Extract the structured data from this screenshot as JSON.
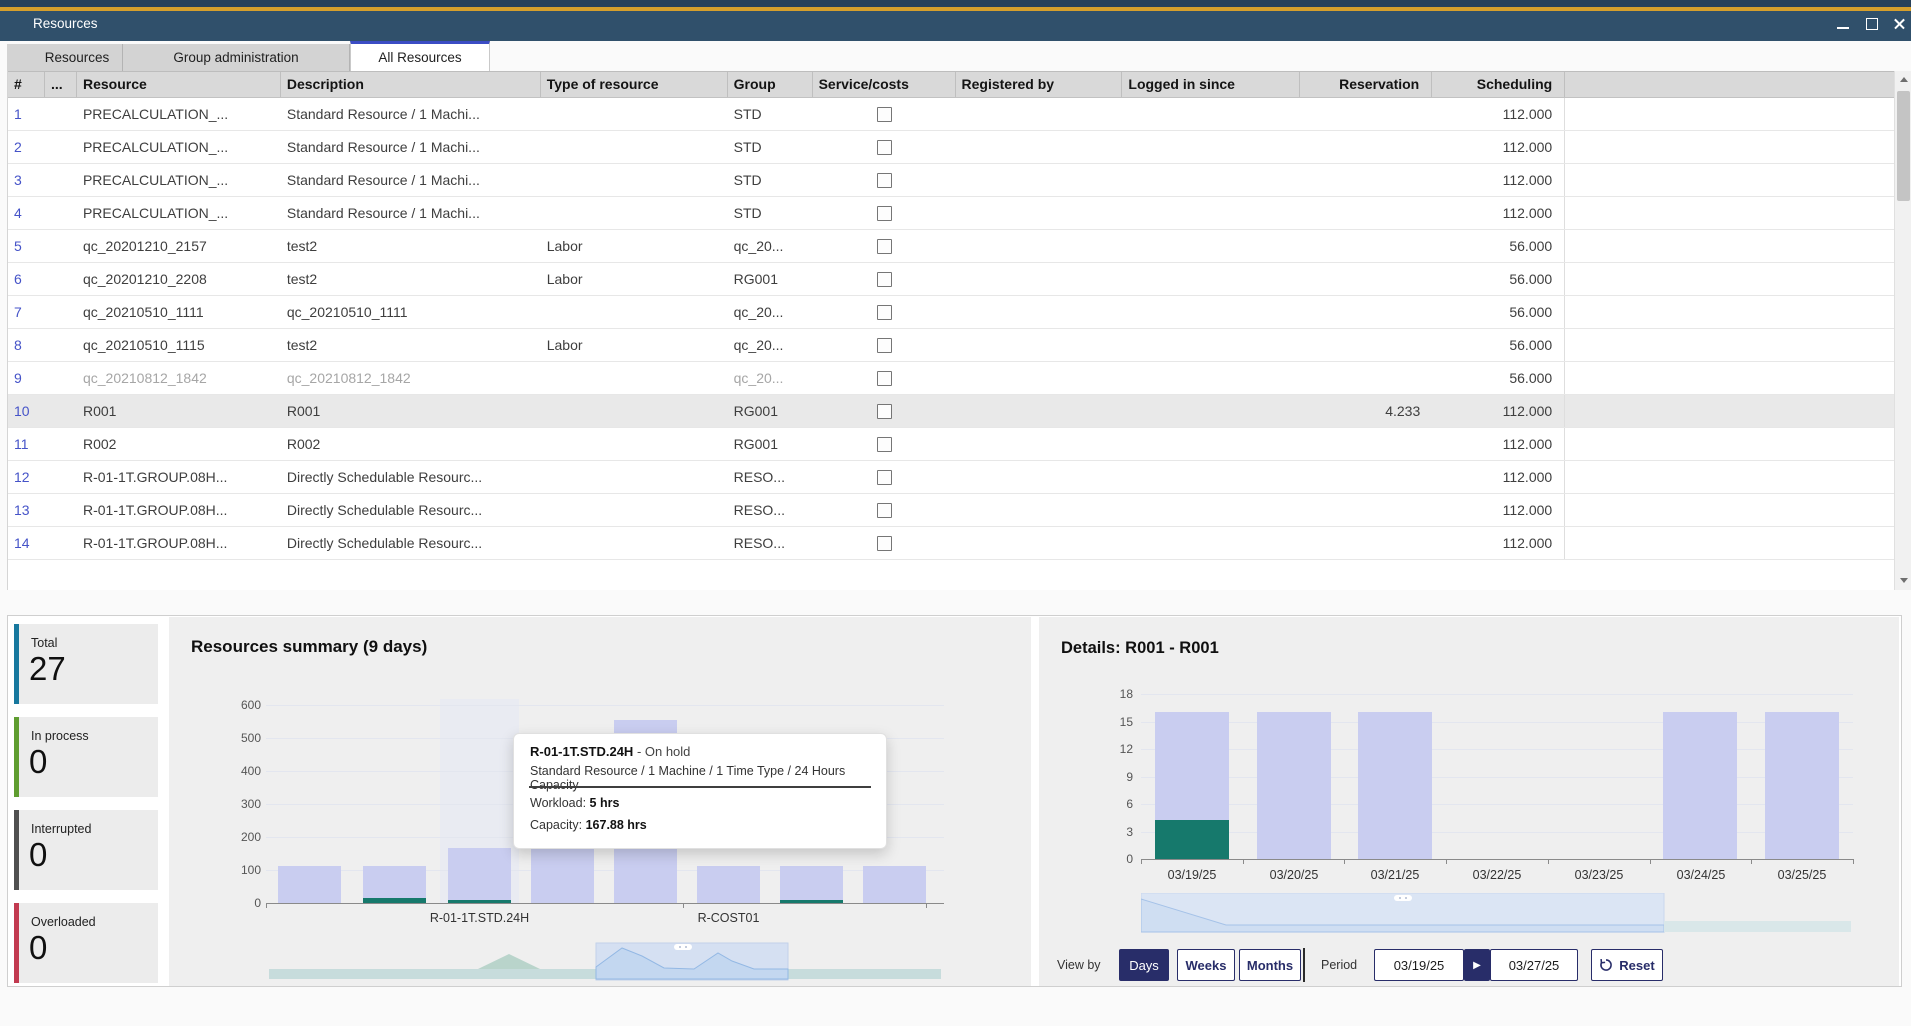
{
  "window": {
    "title": "Resources"
  },
  "tabs": [
    {
      "label": "Resources",
      "active": false
    },
    {
      "label": "Group administration",
      "active": false
    },
    {
      "label": "All Resources",
      "active": true
    }
  ],
  "table": {
    "columns": [
      "#",
      "...",
      "Resource",
      "Description",
      "Type of resource",
      "Group",
      "Service/costs",
      "Registered by",
      "Logged in since",
      "Reservation",
      "Scheduling"
    ],
    "rows": [
      {
        "n": "1",
        "resource": "PRECALCULATION_...",
        "description": "Standard Resource / 1 Machi...",
        "type": "",
        "group": "STD",
        "service_checked": false,
        "registered_by": "",
        "logged_in_since": "",
        "reservation": "",
        "scheduling": "112.000",
        "muted": false,
        "selected": false
      },
      {
        "n": "2",
        "resource": "PRECALCULATION_...",
        "description": "Standard Resource / 1 Machi...",
        "type": "",
        "group": "STD",
        "service_checked": false,
        "registered_by": "",
        "logged_in_since": "",
        "reservation": "",
        "scheduling": "112.000",
        "muted": false,
        "selected": false
      },
      {
        "n": "3",
        "resource": "PRECALCULATION_...",
        "description": "Standard Resource / 1 Machi...",
        "type": "",
        "group": "STD",
        "service_checked": false,
        "registered_by": "",
        "logged_in_since": "",
        "reservation": "",
        "scheduling": "112.000",
        "muted": false,
        "selected": false
      },
      {
        "n": "4",
        "resource": "PRECALCULATION_...",
        "description": "Standard Resource / 1 Machi...",
        "type": "",
        "group": "STD",
        "service_checked": false,
        "registered_by": "",
        "logged_in_since": "",
        "reservation": "",
        "scheduling": "112.000",
        "muted": false,
        "selected": false
      },
      {
        "n": "5",
        "resource": "qc_20201210_2157",
        "description": "test2",
        "type": "Labor",
        "group": "qc_20...",
        "service_checked": false,
        "registered_by": "",
        "logged_in_since": "",
        "reservation": "",
        "scheduling": "56.000",
        "muted": false,
        "selected": false
      },
      {
        "n": "6",
        "resource": "qc_20201210_2208",
        "description": "test2",
        "type": "Labor",
        "group": "RG001",
        "service_checked": false,
        "registered_by": "",
        "logged_in_since": "",
        "reservation": "",
        "scheduling": "56.000",
        "muted": false,
        "selected": false
      },
      {
        "n": "7",
        "resource": "qc_20210510_1111",
        "description": "qc_20210510_1111",
        "type": "",
        "group": "qc_20...",
        "service_checked": false,
        "registered_by": "",
        "logged_in_since": "",
        "reservation": "",
        "scheduling": "56.000",
        "muted": false,
        "selected": false
      },
      {
        "n": "8",
        "resource": "qc_20210510_1115",
        "description": "test2",
        "type": "Labor",
        "group": "qc_20...",
        "service_checked": false,
        "registered_by": "",
        "logged_in_since": "",
        "reservation": "",
        "scheduling": "56.000",
        "muted": false,
        "selected": false
      },
      {
        "n": "9",
        "resource": "qc_20210812_1842",
        "description": "qc_20210812_1842",
        "type": "",
        "group": "qc_20...",
        "service_checked": false,
        "registered_by": "",
        "logged_in_since": "",
        "reservation": "",
        "scheduling": "56.000",
        "muted": true,
        "selected": false
      },
      {
        "n": "10",
        "resource": "R001",
        "description": "R001",
        "type": "",
        "group": "RG001",
        "service_checked": false,
        "registered_by": "",
        "logged_in_since": "",
        "reservation": "4.233",
        "scheduling": "112.000",
        "muted": false,
        "selected": true
      },
      {
        "n": "11",
        "resource": "R002",
        "description": "R002",
        "type": "",
        "group": "RG001",
        "service_checked": false,
        "registered_by": "",
        "logged_in_since": "",
        "reservation": "",
        "scheduling": "112.000",
        "muted": false,
        "selected": false
      },
      {
        "n": "12",
        "resource": "R-01-1T.GROUP.08H...",
        "description": "Directly Schedulable Resourc...",
        "type": "",
        "group": "RESO...",
        "service_checked": false,
        "registered_by": "",
        "logged_in_since": "",
        "reservation": "",
        "scheduling": "112.000",
        "muted": false,
        "selected": false
      },
      {
        "n": "13",
        "resource": "R-01-1T.GROUP.08H...",
        "description": "Directly Schedulable Resourc...",
        "type": "",
        "group": "RESO...",
        "service_checked": false,
        "registered_by": "",
        "logged_in_since": "",
        "reservation": "",
        "scheduling": "112.000",
        "muted": false,
        "selected": false
      },
      {
        "n": "14",
        "resource": "R-01-1T.GROUP.08H...",
        "description": "Directly Schedulable Resourc...",
        "type": "",
        "group": "RESO...",
        "service_checked": false,
        "registered_by": "",
        "logged_in_since": "",
        "reservation": "",
        "scheduling": "112.000",
        "muted": false,
        "selected": false
      }
    ]
  },
  "summary": {
    "cards": [
      {
        "label": "Total",
        "value": "27",
        "color": "#17789e"
      },
      {
        "label": "In process",
        "value": "0",
        "color": "#5f9d30"
      },
      {
        "label": "Interrupted",
        "value": "0",
        "color": "#4f4f4f"
      },
      {
        "label": "Overloaded",
        "value": "0",
        "color": "#c23a50"
      }
    ]
  },
  "resources_summary": {
    "title": "Resources summary (9 days)"
  },
  "tooltip": {
    "title": "R-01-1T.STD.24H",
    "status": "- On hold",
    "subtitle": "Standard Resource / 1 Machine / 1 Time Type / 24 Hours Capacity",
    "workload_label": "Workload:",
    "workload_value": "5 hrs",
    "capacity_label": "Capacity:",
    "capacity_value": "167.88 hrs"
  },
  "details": {
    "title": "Details: R001 - R001",
    "controls": {
      "view_by_label": "View by",
      "modes": [
        {
          "label": "Days",
          "active": true
        },
        {
          "label": "Weeks",
          "active": false
        },
        {
          "label": "Months",
          "active": false
        }
      ],
      "period_label": "Period",
      "date_from": "03/19/25",
      "date_to": "03/27/25",
      "next_icon": "▶",
      "reset_label": "Reset"
    }
  },
  "chart_data": [
    {
      "type": "bar",
      "title": "Resources summary (9 days)",
      "ylim": [
        0,
        600
      ],
      "yticks": [
        0,
        100,
        200,
        300,
        400,
        500,
        600
      ],
      "categories": [
        "",
        "",
        "R-01-1T.STD.24H",
        "",
        "",
        "R-COST01",
        "",
        ""
      ],
      "x_tick_labels": [
        {
          "label": "R-01-1T.STD.24H",
          "bar_index": 2
        },
        {
          "label": "R-COST01",
          "bar_index": 5
        }
      ],
      "series": [
        {
          "name": "capacity",
          "color": "#c9cdf0",
          "values": [
            112,
            112,
            167.88,
            165,
            555,
            112,
            112,
            112
          ]
        },
        {
          "name": "workload",
          "color": "#16796c",
          "values": [
            0,
            15,
            5,
            0,
            0,
            0,
            10,
            0
          ]
        }
      ],
      "highlight_index": 2,
      "grid": true,
      "legend": false
    },
    {
      "type": "bar",
      "title": "Details: R001 - R001",
      "ylim": [
        0,
        18
      ],
      "yticks": [
        0,
        3,
        6,
        9,
        12,
        15,
        18
      ],
      "categories": [
        "03/19/25",
        "03/20/25",
        "03/21/25",
        "03/22/25",
        "03/23/25",
        "03/24/25",
        "03/25/25"
      ],
      "series": [
        {
          "name": "capacity",
          "color": "#c9cdf0",
          "values": [
            16,
            16,
            16,
            0,
            0,
            16,
            16
          ]
        },
        {
          "name": "workload",
          "color": "#16796c",
          "values": [
            4.3,
            0,
            0,
            0,
            0,
            0,
            0
          ]
        }
      ],
      "grid": true,
      "legend": false
    }
  ]
}
